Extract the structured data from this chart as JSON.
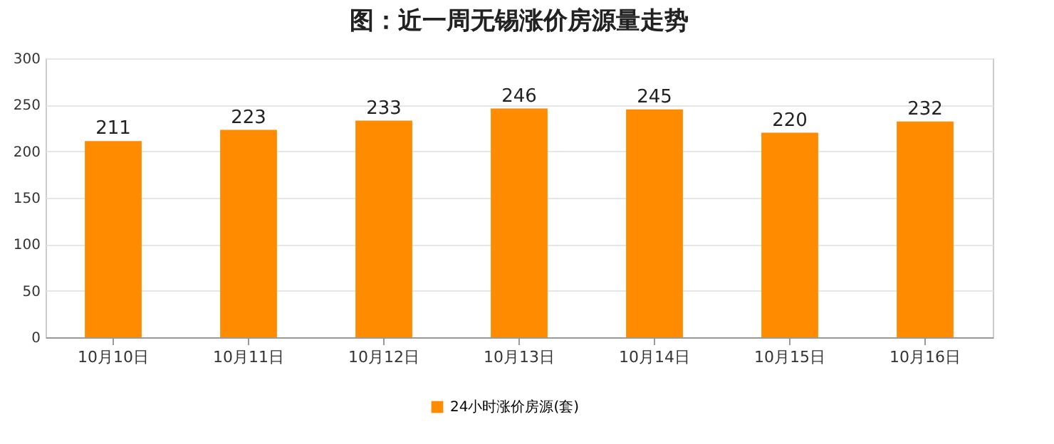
{
  "chart_data": {
    "type": "bar",
    "title": "图：近一周无锡涨价房源量走势",
    "categories": [
      "10月10日",
      "10月11日",
      "10月12日",
      "10月13日",
      "10月14日",
      "10月15日",
      "10月16日"
    ],
    "series": [
      {
        "name": "24小时涨价房源(套)",
        "color": "#ff8c00",
        "values": [
          211,
          223,
          233,
          246,
          245,
          220,
          232
        ]
      }
    ],
    "ylim": [
      0,
      300
    ],
    "yticks": [
      0,
      50,
      100,
      150,
      200,
      250,
      300
    ],
    "grid": "y",
    "legend": "bottom",
    "data_labels": true
  }
}
